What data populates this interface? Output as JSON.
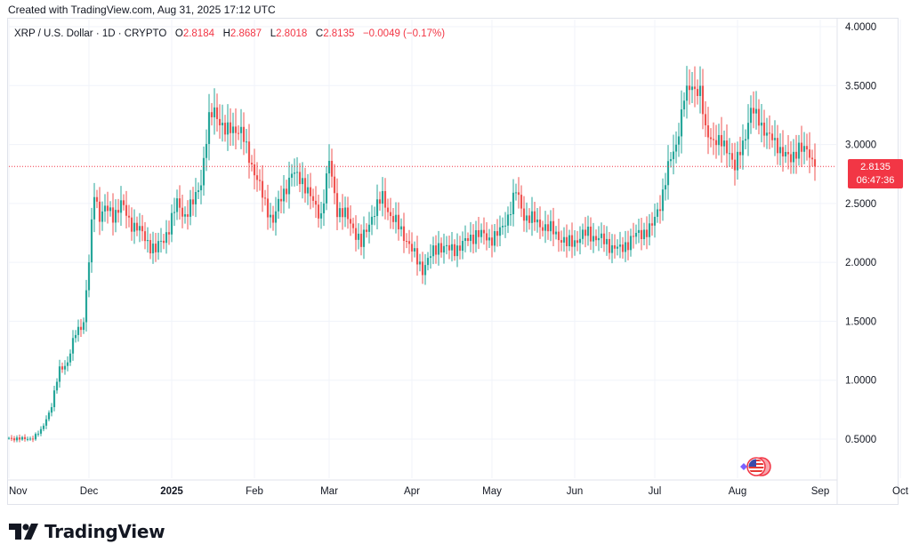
{
  "header": {
    "created": "Created with TradingView.com, Aug 31, 2025 17:12 UTC"
  },
  "legend": {
    "symbol": "XRP / U.S. Dollar · 1D · CRYPTO",
    "o_label": "O",
    "o_value": "2.8184",
    "h_label": "H",
    "h_value": "2.8687",
    "l_label": "L",
    "l_value": "2.8018",
    "c_label": "C",
    "c_value": "2.8135",
    "change": "−0.0049 (−0.17%)"
  },
  "price_label": {
    "price": "2.8135",
    "countdown": "06:47:36"
  },
  "brand": {
    "name": "TradingView"
  },
  "colors": {
    "up": "#26a69a",
    "down": "#ef5350",
    "price_line": "#f23645",
    "grid": "#f0f3fa",
    "axis_text": "#131722"
  },
  "chart_data": {
    "type": "candlestick",
    "title": "XRP / U.S. Dollar · 1D · CRYPTO",
    "y_axis": {
      "ticks": [
        "4.0000",
        "3.5000",
        "3.0000",
        "2.5000",
        "2.0000",
        "1.5000",
        "1.0000",
        "0.5000"
      ],
      "tick_values": [
        4.0,
        3.5,
        3.0,
        2.5,
        2.0,
        1.5,
        1.0,
        0.5
      ],
      "ylim": [
        0.3,
        4.0
      ]
    },
    "x_axis": {
      "ticks": [
        "Nov",
        "Dec",
        "2025",
        "Feb",
        "Mar",
        "Apr",
        "May",
        "Jun",
        "Jul",
        "Aug",
        "Sep",
        "Oct"
      ],
      "tick_days": [
        0,
        30,
        61,
        92,
        120,
        151,
        181,
        212,
        242,
        273,
        304,
        334
      ],
      "bold": [
        "2025"
      ],
      "range_days": [
        0,
        345
      ]
    },
    "last_price": 2.8135,
    "price_path": [
      [
        0,
        0.51
      ],
      [
        5,
        0.5
      ],
      [
        9,
        0.51
      ],
      [
        12,
        0.57
      ],
      [
        16,
        0.78
      ],
      [
        19,
        1.1
      ],
      [
        22,
        1.15
      ],
      [
        25,
        1.4
      ],
      [
        28,
        1.5
      ],
      [
        30,
        2.0
      ],
      [
        32,
        2.6
      ],
      [
        34,
        2.4
      ],
      [
        36,
        2.45
      ],
      [
        39,
        2.4
      ],
      [
        42,
        2.5
      ],
      [
        45,
        2.35
      ],
      [
        48,
        2.3
      ],
      [
        51,
        2.2
      ],
      [
        55,
        2.1
      ],
      [
        58,
        2.2
      ],
      [
        60,
        2.3
      ],
      [
        63,
        2.5
      ],
      [
        66,
        2.4
      ],
      [
        69,
        2.5
      ],
      [
        72,
        2.7
      ],
      [
        75,
        3.2
      ],
      [
        77,
        3.3
      ],
      [
        79,
        3.2
      ],
      [
        81,
        3.1
      ],
      [
        84,
        3.15
      ],
      [
        87,
        3.1
      ],
      [
        90,
        2.9
      ],
      [
        93,
        2.7
      ],
      [
        96,
        2.5
      ],
      [
        99,
        2.35
      ],
      [
        102,
        2.55
      ],
      [
        106,
        2.75
      ],
      [
        110,
        2.7
      ],
      [
        114,
        2.5
      ],
      [
        117,
        2.4
      ],
      [
        120,
        2.85
      ],
      [
        123,
        2.45
      ],
      [
        126,
        2.4
      ],
      [
        129,
        2.3
      ],
      [
        132,
        2.15
      ],
      [
        136,
        2.4
      ],
      [
        140,
        2.55
      ],
      [
        143,
        2.4
      ],
      [
        146,
        2.3
      ],
      [
        149,
        2.2
      ],
      [
        152,
        2.05
      ],
      [
        155,
        1.95
      ],
      [
        158,
        2.05
      ],
      [
        161,
        2.15
      ],
      [
        165,
        2.1
      ],
      [
        170,
        2.15
      ],
      [
        175,
        2.25
      ],
      [
        180,
        2.2
      ],
      [
        184,
        2.25
      ],
      [
        187,
        2.4
      ],
      [
        190,
        2.6
      ],
      [
        193,
        2.4
      ],
      [
        197,
        2.35
      ],
      [
        201,
        2.3
      ],
      [
        205,
        2.25
      ],
      [
        209,
        2.15
      ],
      [
        213,
        2.2
      ],
      [
        217,
        2.25
      ],
      [
        221,
        2.2
      ],
      [
        225,
        2.15
      ],
      [
        229,
        2.1
      ],
      [
        233,
        2.2
      ],
      [
        237,
        2.25
      ],
      [
        241,
        2.3
      ],
      [
        244,
        2.5
      ],
      [
        247,
        2.8
      ],
      [
        250,
        3.0
      ],
      [
        253,
        3.4
      ],
      [
        256,
        3.5
      ],
      [
        259,
        3.45
      ],
      [
        261,
        3.1
      ],
      [
        264,
        3.05
      ],
      [
        267,
        3.0
      ],
      [
        270,
        2.95
      ],
      [
        272,
        2.8
      ],
      [
        275,
        3.0
      ],
      [
        278,
        3.3
      ],
      [
        281,
        3.2
      ],
      [
        284,
        3.1
      ],
      [
        287,
        3.0
      ],
      [
        290,
        2.95
      ],
      [
        293,
        2.85
      ],
      [
        296,
        3.0
      ],
      [
        298,
        2.95
      ],
      [
        300,
        2.9
      ],
      [
        302,
        2.81
      ]
    ]
  }
}
